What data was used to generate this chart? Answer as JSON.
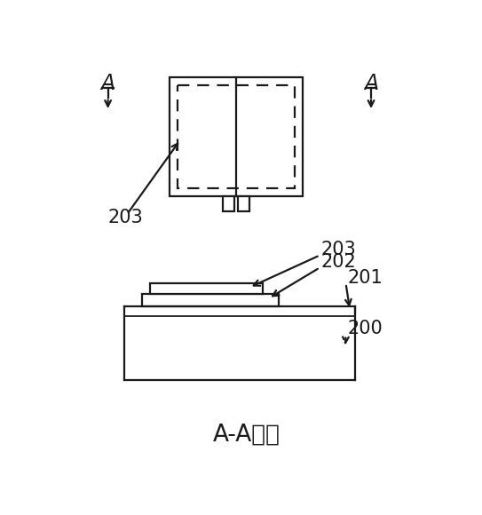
{
  "title": "A-A剖面",
  "background_color": "#ffffff",
  "line_color": "#1a1a1a",
  "labels": {
    "203_top": "203",
    "203_side": "203",
    "202": "202",
    "201": "201",
    "200": "200"
  },
  "figsize": [
    5.43,
    5.8
  ],
  "dpi": 100
}
